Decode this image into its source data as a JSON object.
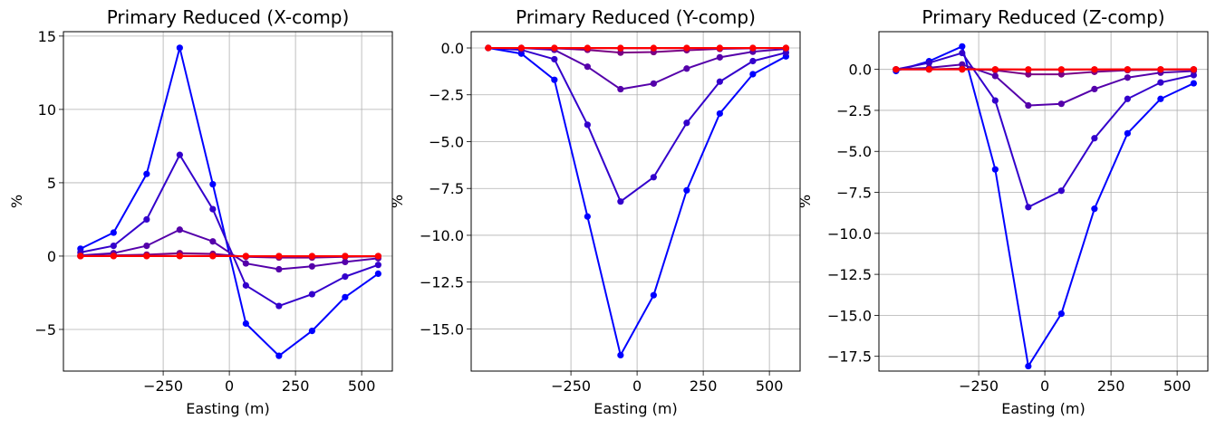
{
  "chart_data": [
    {
      "type": "line",
      "title": "Primary Reduced (X-comp)",
      "xlabel": "Easting (m)",
      "ylabel": "%",
      "xlim": [
        -627,
        616
      ],
      "ylim": [
        -7.84,
        15.3
      ],
      "grid": true,
      "xticks": [
        {
          "v": -250,
          "label": "−250"
        },
        {
          "v": 0,
          "label": "0"
        },
        {
          "v": 250,
          "label": "250"
        },
        {
          "v": 500,
          "label": "500"
        }
      ],
      "yticks": [
        {
          "v": -5,
          "label": "−5"
        },
        {
          "v": 0,
          "label": "0"
        },
        {
          "v": 5,
          "label": "5"
        },
        {
          "v": 10,
          "label": "10"
        },
        {
          "v": 15,
          "label": "15"
        }
      ],
      "x": [
        -562.5,
        -437.5,
        -312.5,
        -187.5,
        -62.5,
        62.5,
        187.5,
        312.5,
        437.5,
        562.5
      ],
      "series": [
        {
          "color": "#0000ff",
          "values": [
            0.5,
            1.6,
            5.6,
            14.2,
            4.9,
            -4.6,
            -6.8,
            -5.1,
            -2.8,
            -1.2
          ]
        },
        {
          "color": "#3300cc",
          "values": [
            0.25,
            0.7,
            2.5,
            6.9,
            3.2,
            -2.0,
            -3.4,
            -2.6,
            -1.4,
            -0.6
          ]
        },
        {
          "color": "#5500aa",
          "values": [
            0.05,
            0.2,
            0.7,
            1.8,
            1.0,
            -0.5,
            -0.9,
            -0.7,
            -0.4,
            -0.15
          ]
        },
        {
          "color": "#7a0085",
          "values": [
            0.0,
            0.05,
            0.1,
            0.2,
            0.15,
            -0.05,
            -0.1,
            -0.1,
            -0.05,
            -0.02
          ]
        },
        {
          "color": "#c00040",
          "values": [
            0,
            0.01,
            0.01,
            0.02,
            0.01,
            0,
            -0.01,
            -0.01,
            0,
            0
          ]
        },
        {
          "color": "#ff0000",
          "values": [
            0,
            0,
            0,
            0,
            0,
            0,
            0,
            0,
            0,
            0
          ]
        }
      ]
    },
    {
      "type": "line",
      "title": "Primary Reduced (Y-comp)",
      "xlabel": "Easting (m)",
      "ylabel": "%",
      "xlim": [
        -627,
        616
      ],
      "ylim": [
        -17.25,
        0.87
      ],
      "grid": true,
      "xticks": [
        {
          "v": -250,
          "label": "−250"
        },
        {
          "v": 0,
          "label": "0"
        },
        {
          "v": 250,
          "label": "250"
        },
        {
          "v": 500,
          "label": "500"
        }
      ],
      "yticks": [
        {
          "v": 0,
          "label": "0.0"
        },
        {
          "v": -2.5,
          "label": "−2.5"
        },
        {
          "v": -5,
          "label": "−5.0"
        },
        {
          "v": -7.5,
          "label": "−7.5"
        },
        {
          "v": -10,
          "label": "−10.0"
        },
        {
          "v": -12.5,
          "label": "−12.5"
        },
        {
          "v": -15,
          "label": "−15.0"
        }
      ],
      "x": [
        -562.5,
        -437.5,
        -312.5,
        -187.5,
        -62.5,
        62.5,
        187.5,
        312.5,
        437.5,
        562.5
      ],
      "series": [
        {
          "color": "#0000ff",
          "values": [
            0,
            -0.3,
            -1.7,
            -9.0,
            -16.4,
            -13.2,
            -7.6,
            -3.5,
            -1.4,
            -0.45
          ]
        },
        {
          "color": "#3300cc",
          "values": [
            0,
            -0.1,
            -0.6,
            -4.1,
            -8.2,
            -6.9,
            -4.0,
            -1.8,
            -0.7,
            -0.25
          ]
        },
        {
          "color": "#5500aa",
          "values": [
            0,
            0,
            -0.1,
            -1.0,
            -2.2,
            -1.9,
            -1.1,
            -0.5,
            -0.2,
            -0.05
          ]
        },
        {
          "color": "#7a0085",
          "values": [
            0,
            0,
            -0.02,
            -0.1,
            -0.25,
            -0.22,
            -0.12,
            -0.05,
            -0.02,
            0
          ]
        },
        {
          "color": "#c00040",
          "values": [
            0,
            0,
            0,
            -0.01,
            -0.02,
            -0.02,
            -0.01,
            0,
            0,
            0
          ]
        },
        {
          "color": "#ff0000",
          "values": [
            0,
            0,
            0,
            0,
            0,
            0,
            0,
            0,
            0,
            0
          ]
        }
      ]
    },
    {
      "type": "line",
      "title": "Primary Reduced (Z-comp)",
      "xlabel": "Easting (m)",
      "ylabel": "%",
      "xlim": [
        -627,
        616
      ],
      "ylim": [
        -18.4,
        2.3
      ],
      "grid": true,
      "xticks": [
        {
          "v": -250,
          "label": "−250"
        },
        {
          "v": 0,
          "label": "0"
        },
        {
          "v": 250,
          "label": "250"
        },
        {
          "v": 500,
          "label": "500"
        }
      ],
      "yticks": [
        {
          "v": 0,
          "label": "0.0"
        },
        {
          "v": -2.5,
          "label": "−2.5"
        },
        {
          "v": -5,
          "label": "−5.0"
        },
        {
          "v": -7.5,
          "label": "−7.5"
        },
        {
          "v": -10,
          "label": "−10.0"
        },
        {
          "v": -12.5,
          "label": "−12.5"
        },
        {
          "v": -15,
          "label": "−15.0"
        },
        {
          "v": -17.5,
          "label": "−17.5"
        }
      ],
      "x": [
        -562.5,
        -437.5,
        -312.5,
        -187.5,
        -62.5,
        62.5,
        187.5,
        312.5,
        437.5,
        562.5
      ],
      "series": [
        {
          "color": "#0000ff",
          "values": [
            -0.1,
            0.5,
            1.4,
            -6.1,
            -18.1,
            -14.9,
            -8.5,
            -3.9,
            -1.8,
            -0.85
          ]
        },
        {
          "color": "#3300cc",
          "values": [
            0,
            0.4,
            1.0,
            -1.9,
            -8.4,
            -7.4,
            -4.2,
            -1.8,
            -0.8,
            -0.35
          ]
        },
        {
          "color": "#5500aa",
          "values": [
            0,
            0.1,
            0.3,
            -0.4,
            -2.2,
            -2.1,
            -1.2,
            -0.5,
            -0.2,
            -0.1
          ]
        },
        {
          "color": "#7a0085",
          "values": [
            0,
            0,
            0.05,
            -0.05,
            -0.3,
            -0.3,
            -0.15,
            -0.05,
            -0.02,
            0
          ]
        },
        {
          "color": "#c00040",
          "values": [
            0,
            0,
            0,
            0,
            -0.02,
            -0.02,
            -0.01,
            0,
            0,
            0
          ]
        },
        {
          "color": "#ff0000",
          "values": [
            0,
            0,
            0,
            0,
            0,
            0,
            0,
            0,
            0,
            0
          ]
        }
      ]
    }
  ]
}
